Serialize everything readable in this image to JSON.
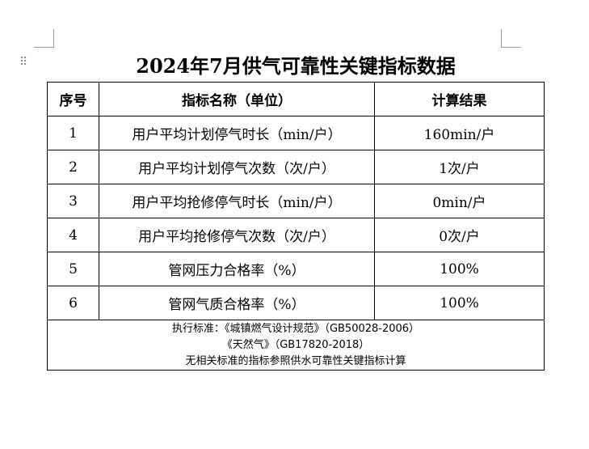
{
  "title": "2024年7月供气可靠性关键指标数据",
  "handle_icon": "drag-handle-icon",
  "table": {
    "headers": [
      "序号",
      "指标名称（单位）",
      "计算结果"
    ],
    "rows": [
      {
        "no": "1",
        "name": "用户平均计划停气时长（min/户）",
        "result": "160min/户"
      },
      {
        "no": "2",
        "name": "用户平均计划停气次数（次/户）",
        "result": "1次/户"
      },
      {
        "no": "3",
        "name": "用户平均抢修停气时长（min/户）",
        "result": "0min/户"
      },
      {
        "no": "4",
        "name": "用户平均抢修停气次数（次/户）",
        "result": "0次/户"
      },
      {
        "no": "5",
        "name": "管网压力合格率（%）",
        "result": "100%"
      },
      {
        "no": "6",
        "name": "管网气质合格率（%）",
        "result": "100%"
      }
    ],
    "notes": [
      "执行标准：《城镇燃气设计规范》（GB50028-2006）",
      "《天然气》（GB17820-2018）",
      "无相关标准的指标参照供水可靠性关键指标计算"
    ]
  }
}
